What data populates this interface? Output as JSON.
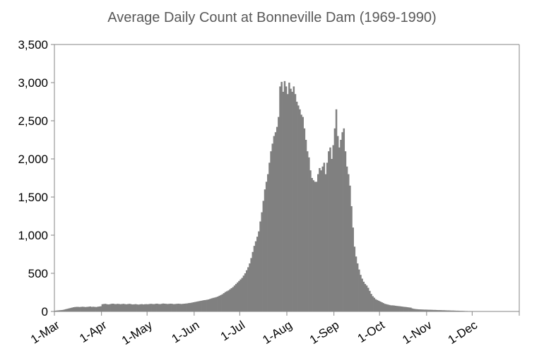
{
  "chart_data": {
    "type": "bar",
    "title": "Average Daily Count at Bonneville Dam (1969-1990)",
    "xlabel": "",
    "ylabel": "",
    "ylim": [
      0,
      3500
    ],
    "yticks": [
      0,
      500,
      1000,
      1500,
      2000,
      2500,
      3000,
      3500
    ],
    "ytick_labels": [
      "0",
      "500",
      "1,000",
      "1,500",
      "2,000",
      "2,500",
      "3,000",
      "3,500"
    ],
    "x_start": "1-Mar",
    "x_end": "31-Dec",
    "xticks": [
      {
        "label": "1-Mar",
        "day": 0
      },
      {
        "label": "1-Apr",
        "day": 31
      },
      {
        "label": "1-May",
        "day": 61
      },
      {
        "label": "1-Jun",
        "day": 92
      },
      {
        "label": "1-Jul",
        "day": 122
      },
      {
        "label": "1-Aug",
        "day": 153
      },
      {
        "label": "1-Sep",
        "day": 184
      },
      {
        "label": "1-Oct",
        "day": 214
      },
      {
        "label": "1-Nov",
        "day": 245
      },
      {
        "label": "1-Dec",
        "day": 275
      }
    ],
    "bar_color": "#808080",
    "grid": false,
    "legend": "none",
    "values": [
      10,
      12,
      14,
      16,
      18,
      20,
      25,
      30,
      35,
      40,
      45,
      50,
      55,
      58,
      60,
      60,
      58,
      60,
      62,
      60,
      58,
      60,
      62,
      65,
      60,
      62,
      60,
      58,
      62,
      65,
      68,
      95,
      98,
      100,
      95,
      92,
      95,
      100,
      102,
      98,
      96,
      100,
      98,
      95,
      98,
      100,
      96,
      94,
      98,
      100,
      95,
      92,
      94,
      96,
      92,
      90,
      94,
      96,
      92,
      95,
      96,
      94,
      98,
      100,
      98,
      96,
      100,
      102,
      98,
      96,
      100,
      104,
      102,
      100,
      98,
      100,
      102,
      100,
      96,
      98,
      100,
      102,
      100,
      98,
      100,
      102,
      104,
      106,
      110,
      112,
      116,
      120,
      124,
      128,
      132,
      136,
      140,
      144,
      148,
      150,
      154,
      158,
      165,
      172,
      178,
      182,
      188,
      195,
      205,
      215,
      225,
      240,
      255,
      265,
      275,
      290,
      305,
      320,
      340,
      360,
      380,
      400,
      420,
      440,
      470,
      500,
      540,
      580,
      630,
      700,
      780,
      860,
      920,
      980,
      1050,
      1180,
      1300,
      1450,
      1600,
      1700,
      1800,
      1950,
      2100,
      2200,
      2300,
      2350,
      2420,
      2550,
      2950,
      3010,
      2880,
      3020,
      2950,
      2850,
      3000,
      2920,
      2880,
      2950,
      2850,
      2750,
      2700,
      2650,
      2580,
      2550,
      2400,
      2250,
      2100,
      2020,
      1850,
      1750,
      1720,
      1700,
      1700,
      1800,
      1880,
      1850,
      1900,
      1950,
      1800,
      1950,
      2100,
      2150,
      2000,
      2180,
      2400,
      2650,
      2300,
      2150,
      2250,
      2350,
      2400,
      2100,
      1900,
      1800,
      1650,
      1380,
      1100,
      850,
      720,
      630,
      550,
      480,
      430,
      390,
      360,
      340,
      310,
      270,
      230,
      200,
      180,
      160,
      150,
      140,
      130,
      120,
      110,
      100,
      95,
      90,
      85,
      80,
      80,
      78,
      75,
      72,
      70,
      68,
      65,
      62,
      60,
      58,
      55,
      52,
      50,
      40,
      35,
      32,
      30,
      28,
      27,
      26,
      25,
      24,
      24,
      23,
      22,
      22,
      21,
      20,
      20,
      19,
      18,
      18,
      17,
      16,
      16,
      15,
      14,
      14,
      13,
      12,
      12,
      11,
      10,
      10,
      9,
      8,
      8,
      7,
      6,
      6,
      5,
      5,
      4,
      4,
      3,
      3,
      3,
      2,
      2,
      2,
      2,
      1,
      1,
      1,
      1,
      1,
      1,
      1,
      1,
      1,
      1,
      1,
      1,
      1,
      1,
      1,
      1,
      0,
      0,
      0,
      0,
      0,
      0
    ]
  }
}
